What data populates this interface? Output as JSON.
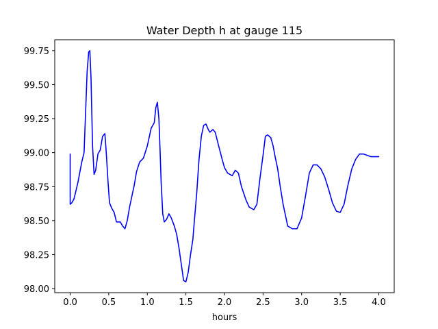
{
  "chart_data": {
    "type": "line",
    "title": "Water Depth h at gauge 115",
    "xlabel": "hours",
    "ylabel": "",
    "xlim": [
      -0.2,
      4.2
    ],
    "ylim": [
      97.97,
      99.83
    ],
    "grid": false,
    "x_ticks": [
      0.0,
      0.5,
      1.0,
      1.5,
      2.0,
      2.5,
      3.0,
      3.5,
      4.0
    ],
    "x_tick_labels": [
      "0.0",
      "0.5",
      "1.0",
      "1.5",
      "2.0",
      "2.5",
      "3.0",
      "3.5",
      "4.0"
    ],
    "y_ticks": [
      98.0,
      98.25,
      98.5,
      98.75,
      99.0,
      99.25,
      99.5,
      99.75
    ],
    "y_tick_labels": [
      "98.00",
      "98.25",
      "98.50",
      "98.75",
      "99.00",
      "99.25",
      "99.50",
      "99.75"
    ],
    "series": [
      {
        "color": "#0000ff",
        "x": [
          0.0,
          0.0,
          0.02,
          0.05,
          0.1,
          0.15,
          0.18,
          0.2,
          0.22,
          0.24,
          0.255,
          0.27,
          0.29,
          0.31,
          0.33,
          0.36,
          0.39,
          0.42,
          0.45,
          0.47,
          0.49,
          0.51,
          0.54,
          0.57,
          0.6,
          0.63,
          0.65,
          0.68,
          0.71,
          0.74,
          0.77,
          0.8,
          0.83,
          0.86,
          0.9,
          0.95,
          1.0,
          1.05,
          1.07,
          1.09,
          1.11,
          1.13,
          1.15,
          1.165,
          1.18,
          1.2,
          1.22,
          1.25,
          1.28,
          1.31,
          1.35,
          1.38,
          1.41,
          1.44,
          1.47,
          1.5,
          1.53,
          1.56,
          1.59,
          1.61,
          1.64,
          1.67,
          1.7,
          1.73,
          1.76,
          1.79,
          1.81,
          1.83,
          1.85,
          1.88,
          1.92,
          1.97,
          2.0,
          2.04,
          2.1,
          2.14,
          2.18,
          2.22,
          2.25,
          2.28,
          2.32,
          2.38,
          2.42,
          2.46,
          2.5,
          2.53,
          2.56,
          2.6,
          2.63,
          2.66,
          2.69,
          2.72,
          2.76,
          2.82,
          2.88,
          2.94,
          3.0,
          3.05,
          3.1,
          3.15,
          3.2,
          3.25,
          3.3,
          3.35,
          3.4,
          3.45,
          3.5,
          3.55,
          3.6,
          3.65,
          3.7,
          3.75,
          3.8,
          3.85,
          3.9,
          3.95,
          4.0
        ],
        "y": [
          98.99,
          98.62,
          98.63,
          98.66,
          98.78,
          98.93,
          99.0,
          99.3,
          99.6,
          99.74,
          99.75,
          99.55,
          99.05,
          98.84,
          98.87,
          98.99,
          99.02,
          99.12,
          99.14,
          98.98,
          98.79,
          98.63,
          98.59,
          98.56,
          98.49,
          98.49,
          98.49,
          98.46,
          98.44,
          98.5,
          98.6,
          98.68,
          98.76,
          98.86,
          98.93,
          98.96,
          99.05,
          99.18,
          99.2,
          99.22,
          99.33,
          99.37,
          99.25,
          99.02,
          98.77,
          98.55,
          98.49,
          98.51,
          98.55,
          98.52,
          98.46,
          98.4,
          98.3,
          98.18,
          98.06,
          98.05,
          98.12,
          98.25,
          98.36,
          98.5,
          98.7,
          98.95,
          99.12,
          99.2,
          99.21,
          99.17,
          99.15,
          99.16,
          99.17,
          99.15,
          99.06,
          98.95,
          98.89,
          98.85,
          98.83,
          98.87,
          98.85,
          98.75,
          98.7,
          98.65,
          98.6,
          98.58,
          98.62,
          98.81,
          98.98,
          99.12,
          99.13,
          99.11,
          99.05,
          98.96,
          98.88,
          98.76,
          98.62,
          98.46,
          98.44,
          98.44,
          98.52,
          98.68,
          98.85,
          98.91,
          98.91,
          98.88,
          98.82,
          98.73,
          98.63,
          98.57,
          98.56,
          98.62,
          98.76,
          98.88,
          98.95,
          98.99,
          98.99,
          98.98,
          98.97,
          98.97,
          98.97
        ]
      }
    ]
  }
}
